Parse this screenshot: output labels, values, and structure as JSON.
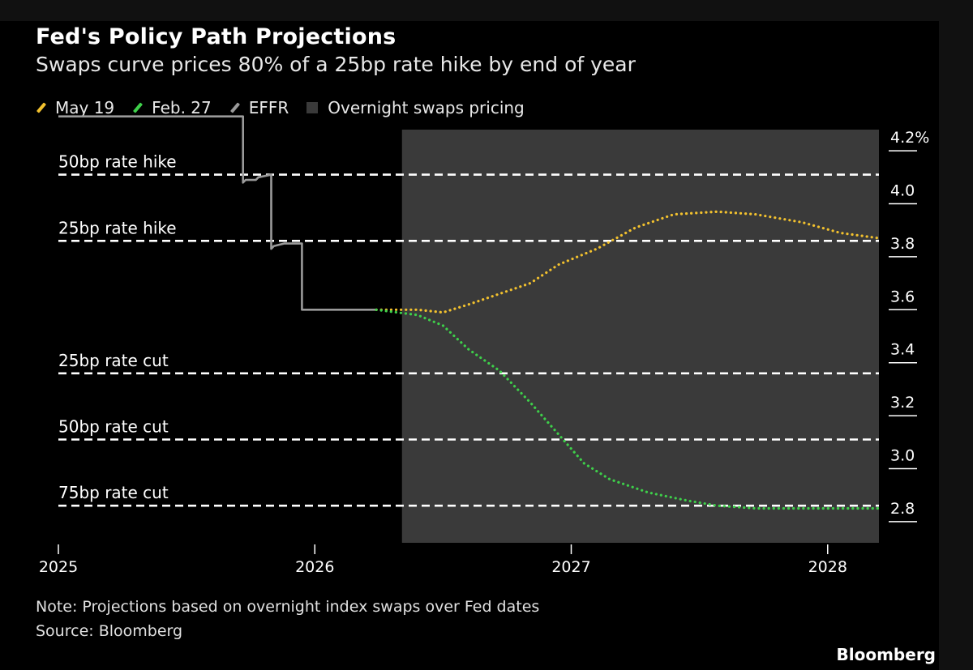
{
  "header": {
    "title": "Fed's Policy Path Projections",
    "subtitle": "Swaps curve prices 80% of a 25bp rate hike by end of year"
  },
  "legend": [
    {
      "label": "May 19",
      "color": "#f2c12e",
      "kind": "line"
    },
    {
      "label": "Feb. 27",
      "color": "#3ecf4a",
      "kind": "line"
    },
    {
      "label": "EFFR",
      "color": "#9a9a9a",
      "kind": "line"
    },
    {
      "label": "Overnight swaps pricing",
      "color": "#3a3a3a",
      "kind": "box"
    }
  ],
  "footer": {
    "note": "Note: Projections based on overnight index swaps over Fed dates",
    "source": "Source: Bloomberg",
    "brand": "Bloomberg"
  },
  "chart_data": {
    "type": "line",
    "title": "Fed's Policy Path Projections",
    "xlim": [
      2025.0,
      2028.2
    ],
    "ylim": [
      2.72,
      4.28
    ],
    "x_ticks": [
      2025,
      2026,
      2027,
      2028
    ],
    "x_tick_labels": [
      "2025",
      "2026",
      "2027",
      "2028"
    ],
    "y_ticks": [
      2.8,
      3.0,
      3.2,
      3.4,
      3.6,
      3.8,
      4.0,
      4.2
    ],
    "y_tick_labels": [
      "2.8",
      "3.0",
      "3.2",
      "3.4",
      "3.6",
      "3.8",
      "4.0",
      "4.2%"
    ],
    "shaded_region": {
      "label": "Overnight swaps pricing",
      "x_start": 2026.34,
      "x_end": 2028.2,
      "color": "#3a3a3a"
    },
    "reference_lines": [
      {
        "label": "50bp rate hike",
        "y": 4.11
      },
      {
        "label": "25bp rate hike",
        "y": 3.86
      },
      {
        "label": "25bp rate cut",
        "y": 3.36
      },
      {
        "label": "50bp rate cut",
        "y": 3.11
      },
      {
        "label": "75bp rate cut",
        "y": 2.86
      }
    ],
    "series": [
      {
        "name": "EFFR",
        "color": "#9a9a9a",
        "style": "solid",
        "x": [
          2025.0,
          2025.72,
          2025.72,
          2025.73,
          2025.77,
          2025.78,
          2025.83,
          2025.83,
          2025.84,
          2025.88,
          2025.95,
          2025.95,
          2026.24
        ],
        "y": [
          4.33,
          4.33,
          4.08,
          4.09,
          4.09,
          4.1,
          4.11,
          3.83,
          3.84,
          3.85,
          3.85,
          3.6,
          3.6
        ]
      },
      {
        "name": "May 19",
        "color": "#f2c12e",
        "style": "dotted",
        "x": [
          2026.24,
          2026.4,
          2026.5,
          2026.6,
          2026.72,
          2026.84,
          2026.95,
          2027.1,
          2027.25,
          2027.4,
          2027.57,
          2027.72,
          2027.9,
          2028.05,
          2028.2
        ],
        "y": [
          3.6,
          3.6,
          3.59,
          3.62,
          3.66,
          3.7,
          3.77,
          3.83,
          3.91,
          3.96,
          3.97,
          3.96,
          3.93,
          3.89,
          3.87
        ]
      },
      {
        "name": "Feb. 27",
        "color": "#3ecf4a",
        "style": "dotted",
        "x": [
          2026.24,
          2026.4,
          2026.5,
          2026.6,
          2026.72,
          2026.84,
          2026.95,
          2027.05,
          2027.15,
          2027.3,
          2027.45,
          2027.57,
          2027.72,
          2027.9,
          2028.05,
          2028.2
        ],
        "y": [
          3.6,
          3.58,
          3.54,
          3.45,
          3.37,
          3.25,
          3.13,
          3.02,
          2.96,
          2.91,
          2.88,
          2.86,
          2.85,
          2.85,
          2.85,
          2.85
        ]
      }
    ]
  }
}
